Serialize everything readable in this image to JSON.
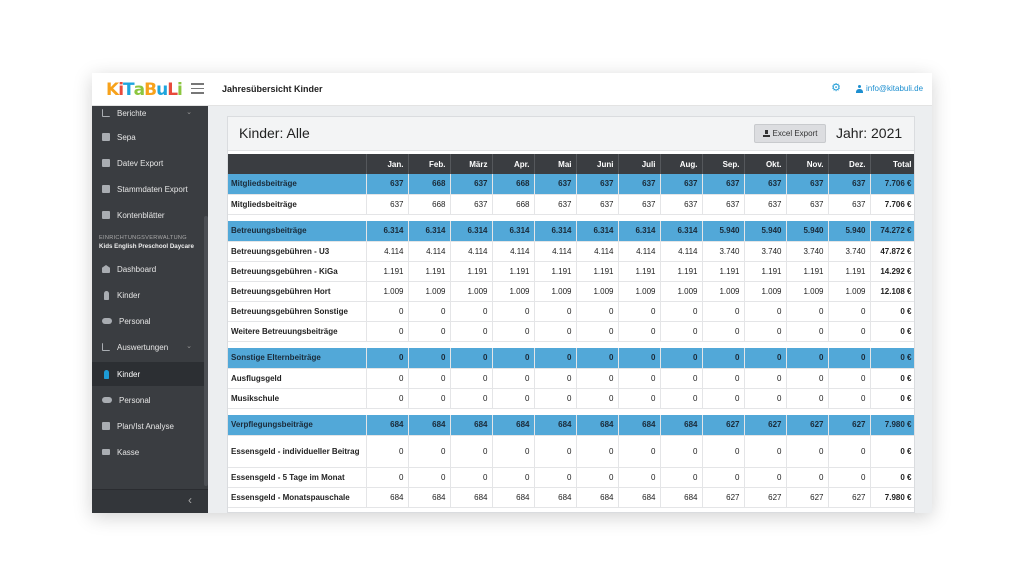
{
  "app": {
    "logo_text": "KiTaBuLi",
    "heading": "Jahresübersicht Kinder",
    "user_email": "info@kitabuli.de"
  },
  "sidebar": {
    "top_items": [
      {
        "label": "Berichte",
        "icon": "chart-icon"
      },
      {
        "label": "Sepa",
        "icon": "document-icon"
      },
      {
        "label": "Datev Export",
        "icon": "document-icon"
      },
      {
        "label": "Stammdaten Export",
        "icon": "document-icon"
      },
      {
        "label": "Kontenblätter",
        "icon": "document-icon"
      }
    ],
    "section_title": "EINRICHTUNGSVERWALTUNG",
    "section_subtitle": "Kids English Preschool Daycare",
    "items": [
      {
        "label": "Dashboard",
        "icon": "bank-icon"
      },
      {
        "label": "Kinder",
        "icon": "child-icon"
      },
      {
        "label": "Personal",
        "icon": "people-icon"
      },
      {
        "label": "Auswertungen",
        "icon": "chart-icon"
      },
      {
        "label": "Kinder",
        "icon": "child-icon",
        "active": true
      },
      {
        "label": "Personal",
        "icon": "people-icon"
      },
      {
        "label": "Plan/Ist Analyse",
        "icon": "document-icon"
      },
      {
        "label": "Kasse",
        "icon": "cash-icon"
      }
    ],
    "collapse_glyph": "‹"
  },
  "card": {
    "title": "Kinder: Alle",
    "export_label": "Excel Export",
    "year_label": "Jahr: 2021"
  },
  "table": {
    "columns": [
      "",
      "Jan.",
      "Feb.",
      "März",
      "Apr.",
      "Mai",
      "Juni",
      "Juli",
      "Aug.",
      "Sep.",
      "Okt.",
      "Nov.",
      "Dez.",
      "Total"
    ],
    "rows": [
      {
        "type": "group",
        "cells": [
          "Mitgliedsbeiträge",
          "637",
          "668",
          "637",
          "668",
          "637",
          "637",
          "637",
          "637",
          "637",
          "637",
          "637",
          "637",
          "7.706 €"
        ]
      },
      {
        "type": "row",
        "cells": [
          "Mitgliedsbeiträge",
          "637",
          "668",
          "637",
          "668",
          "637",
          "637",
          "637",
          "637",
          "637",
          "637",
          "637",
          "637",
          "7.706 €"
        ]
      },
      {
        "type": "spacer"
      },
      {
        "type": "group",
        "cells": [
          "Betreuungsbeiträge",
          "6.314",
          "6.314",
          "6.314",
          "6.314",
          "6.314",
          "6.314",
          "6.314",
          "6.314",
          "5.940",
          "5.940",
          "5.940",
          "5.940",
          "74.272 €"
        ]
      },
      {
        "type": "row",
        "cells": [
          "Betreuungsgebühren - U3",
          "4.114",
          "4.114",
          "4.114",
          "4.114",
          "4.114",
          "4.114",
          "4.114",
          "4.114",
          "3.740",
          "3.740",
          "3.740",
          "3.740",
          "47.872 €"
        ]
      },
      {
        "type": "row",
        "cells": [
          "Betreuungsgebühren - KiGa",
          "1.191",
          "1.191",
          "1.191",
          "1.191",
          "1.191",
          "1.191",
          "1.191",
          "1.191",
          "1.191",
          "1.191",
          "1.191",
          "1.191",
          "14.292 €"
        ]
      },
      {
        "type": "row",
        "cells": [
          "Betreuungsgebühren Hort",
          "1.009",
          "1.009",
          "1.009",
          "1.009",
          "1.009",
          "1.009",
          "1.009",
          "1.009",
          "1.009",
          "1.009",
          "1.009",
          "1.009",
          "12.108 €"
        ]
      },
      {
        "type": "row",
        "cells": [
          "Betreuungsgebühren Sonstige",
          "0",
          "0",
          "0",
          "0",
          "0",
          "0",
          "0",
          "0",
          "0",
          "0",
          "0",
          "0",
          "0 €"
        ]
      },
      {
        "type": "row",
        "cells": [
          "Weitere Betreuungsbeiträge",
          "0",
          "0",
          "0",
          "0",
          "0",
          "0",
          "0",
          "0",
          "0",
          "0",
          "0",
          "0",
          "0 €"
        ]
      },
      {
        "type": "spacer"
      },
      {
        "type": "group",
        "cells": [
          "Sonstige Elternbeiträge",
          "0",
          "0",
          "0",
          "0",
          "0",
          "0",
          "0",
          "0",
          "0",
          "0",
          "0",
          "0",
          "0 €"
        ]
      },
      {
        "type": "row",
        "cells": [
          "Ausflugsgeld",
          "0",
          "0",
          "0",
          "0",
          "0",
          "0",
          "0",
          "0",
          "0",
          "0",
          "0",
          "0",
          "0 €"
        ]
      },
      {
        "type": "row",
        "cells": [
          "Musikschule",
          "0",
          "0",
          "0",
          "0",
          "0",
          "0",
          "0",
          "0",
          "0",
          "0",
          "0",
          "0",
          "0 €"
        ]
      },
      {
        "type": "spacer"
      },
      {
        "type": "group",
        "cells": [
          "Verpflegungsbeiträge",
          "684",
          "684",
          "684",
          "684",
          "684",
          "684",
          "684",
          "684",
          "627",
          "627",
          "627",
          "627",
          "7.980 €"
        ]
      },
      {
        "type": "tall",
        "cells": [
          "Essensgeld - individueller Beitrag",
          "0",
          "0",
          "0",
          "0",
          "0",
          "0",
          "0",
          "0",
          "0",
          "0",
          "0",
          "0",
          "0 €"
        ]
      },
      {
        "type": "row",
        "cells": [
          "Essensgeld - 5 Tage im Monat",
          "0",
          "0",
          "0",
          "0",
          "0",
          "0",
          "0",
          "0",
          "0",
          "0",
          "0",
          "0",
          "0 €"
        ]
      },
      {
        "type": "row",
        "cells": [
          "Essensgeld - Monatspauschale",
          "684",
          "684",
          "684",
          "684",
          "684",
          "684",
          "684",
          "684",
          "627",
          "627",
          "627",
          "627",
          "7.980 €"
        ]
      }
    ]
  }
}
